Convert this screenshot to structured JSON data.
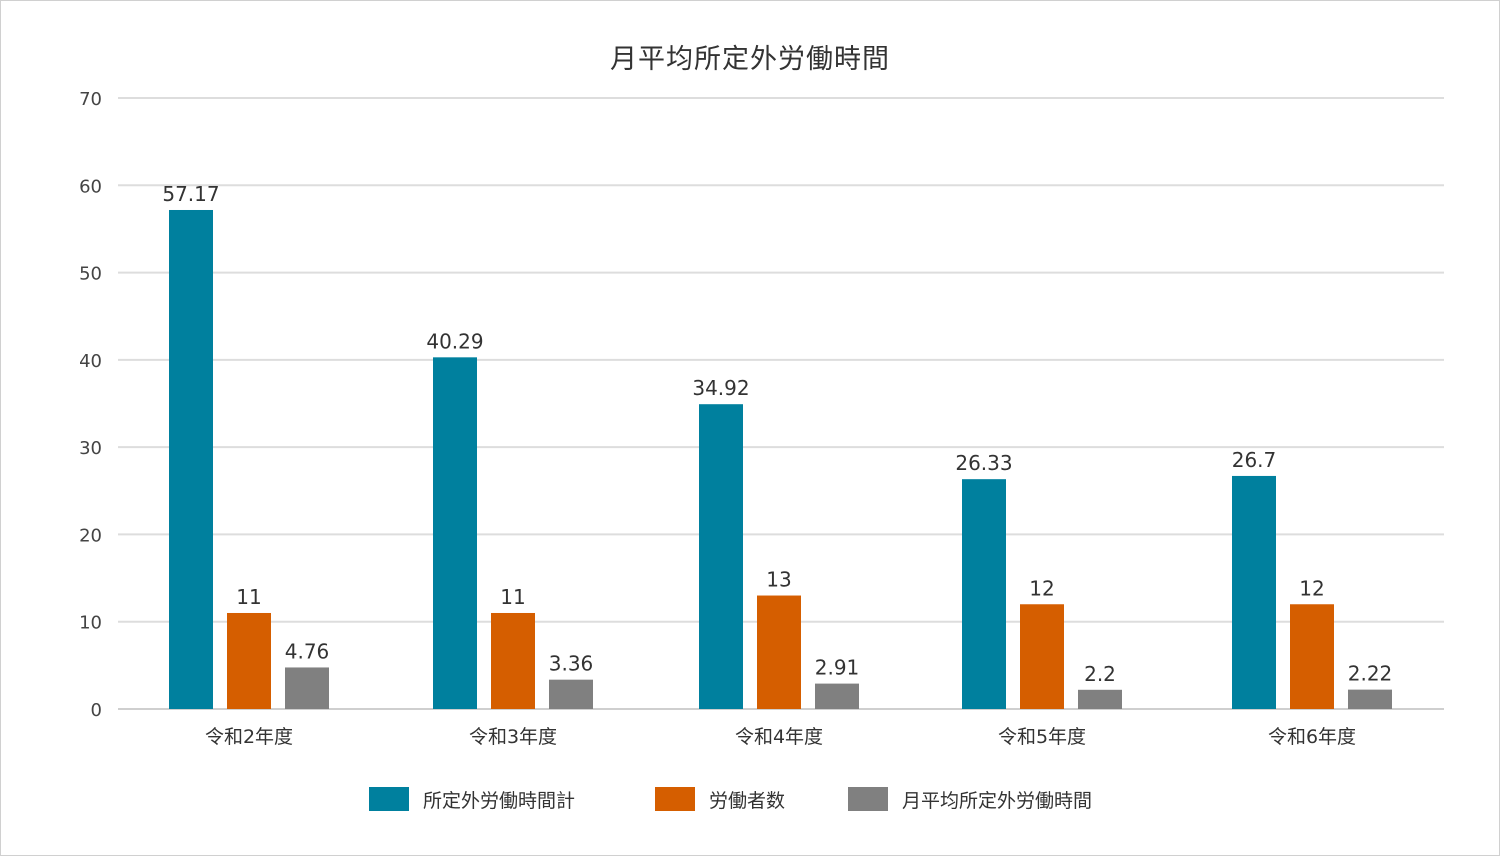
{
  "chart_data": {
    "type": "bar",
    "title": "月平均所定外労働時間",
    "categories": [
      "令和2年度",
      "令和3年度",
      "令和4年度",
      "令和5年度",
      "令和6年度"
    ],
    "series": [
      {
        "name": "所定外労働時間計",
        "color": "#00809E",
        "values": [
          57.17,
          40.29,
          34.92,
          26.33,
          26.7
        ],
        "labels": [
          "57.17",
          "40.29",
          "34.92",
          "26.33",
          "26.7"
        ]
      },
      {
        "name": "労働者数",
        "color": "#D55E00",
        "values": [
          11,
          11,
          13,
          12,
          12
        ],
        "labels": [
          "11",
          "11",
          "13",
          "12",
          "12"
        ]
      },
      {
        "name": "月平均所定外労働時間",
        "color": "#808080",
        "values": [
          4.76,
          3.36,
          2.91,
          2.2,
          2.22
        ],
        "labels": [
          "4.76",
          "3.36",
          "2.91",
          "2.2",
          "2.22"
        ]
      }
    ],
    "ylim": [
      0,
      70
    ],
    "yticks": [
      "0",
      "10",
      "20",
      "30",
      "40",
      "50",
      "60",
      "70"
    ],
    "xlabel": "",
    "ylabel": "",
    "grid": true,
    "legend_position": "bottom"
  }
}
